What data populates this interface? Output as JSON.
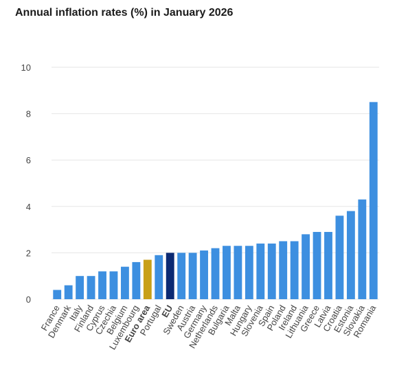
{
  "chart_data": {
    "type": "bar",
    "title": "Annual inflation rates (%) in January 2026",
    "xlabel": "",
    "ylabel": "",
    "ylim": [
      0,
      10
    ],
    "yticks": [
      0,
      2,
      4,
      6,
      8,
      10
    ],
    "grid": true,
    "categories": [
      "France",
      "Denmark",
      "Italy",
      "Finland",
      "Cyprus",
      "Czechia",
      "Belgium",
      "Luxembourg",
      "Euro area",
      "Portugal",
      "EU",
      "Sweden",
      "Austria",
      "Germany",
      "Netherlands",
      "Bulgaria",
      "Malta",
      "Hungary",
      "Slovenia",
      "Spain",
      "Poland",
      "Ireland",
      "Lithuania",
      "Greece",
      "Latvia",
      "Croatia",
      "Estonia",
      "Slovakia",
      "Romania"
    ],
    "values": [
      0.4,
      0.6,
      1.0,
      1.0,
      1.2,
      1.2,
      1.4,
      1.6,
      1.7,
      1.9,
      2.0,
      2.0,
      2.0,
      2.1,
      2.2,
      2.3,
      2.3,
      2.3,
      2.4,
      2.4,
      2.5,
      2.5,
      2.8,
      2.9,
      2.9,
      3.6,
      3.8,
      4.3,
      8.5
    ],
    "highlight": {
      "Euro area": "#c8a018",
      "EU": "#0c2a73"
    },
    "bold_categories": [
      "Euro area",
      "EU"
    ],
    "colors": {
      "bar": "#3d8fe0",
      "gridline": "#e6e6e6",
      "tick_label": "#444444"
    }
  }
}
